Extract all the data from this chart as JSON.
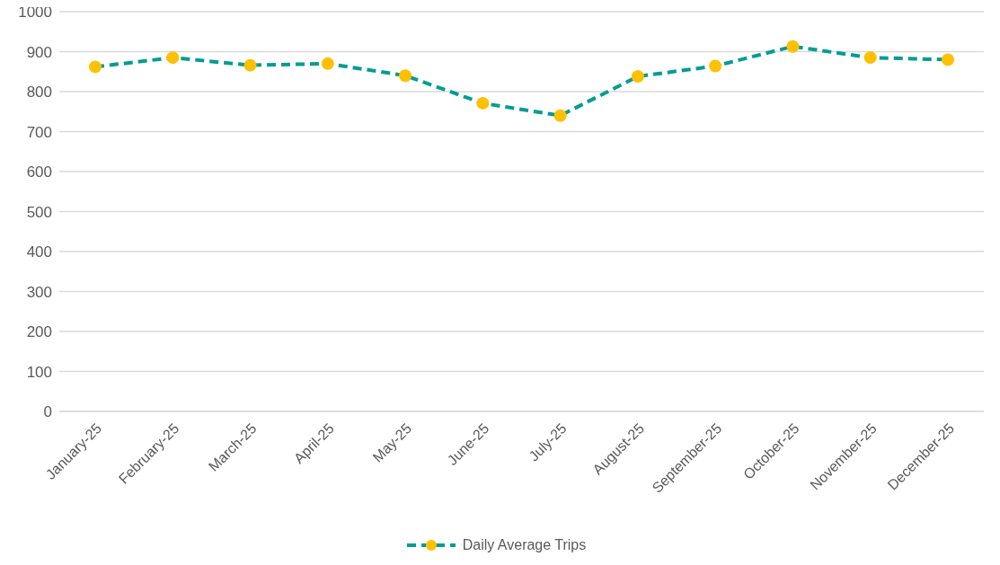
{
  "chart_data": {
    "type": "line",
    "categories": [
      "January-25",
      "February-25",
      "March-25",
      "April-25",
      "May-25",
      "June-25",
      "July-25",
      "August-25",
      "September-25",
      "October-25",
      "November-25",
      "December-25"
    ],
    "series": [
      {
        "name": "Daily Average Trips",
        "color": "#009c95",
        "colors": [
          "#ffc000",
          "#ffc000",
          "#ffc000",
          "#ffc000",
          "#ffc000",
          "#ffc000",
          "#ffc000",
          "#ffc000",
          "#ffc000",
          "#ffc000",
          "#ffc000",
          "#ffc000"
        ],
        "values": [
          862,
          885,
          866,
          870,
          840,
          771,
          740,
          838,
          864,
          913,
          885,
          880
        ]
      }
    ],
    "ylim": [
      0,
      1000
    ],
    "yticks": [
      0,
      100,
      200,
      300,
      400,
      500,
      600,
      700,
      800,
      900,
      1000
    ],
    "grid": "y",
    "legend": "bottom",
    "marker": "circle",
    "line_style": "dashed"
  }
}
